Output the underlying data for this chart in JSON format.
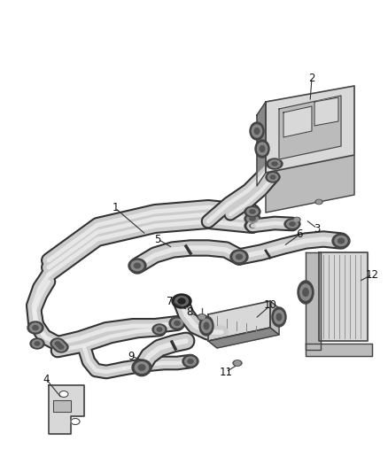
{
  "background_color": "#ffffff",
  "fig_width": 4.38,
  "fig_height": 5.33,
  "dpi": 100,
  "edge_color": "#444444",
  "fill_light": "#d8d8d8",
  "fill_mid": "#bbbbbb",
  "fill_dark": "#888888",
  "tube_fill": "#cccccc",
  "tube_edge": "#555555",
  "label_fontsize": 8.5,
  "label_color": "#111111"
}
